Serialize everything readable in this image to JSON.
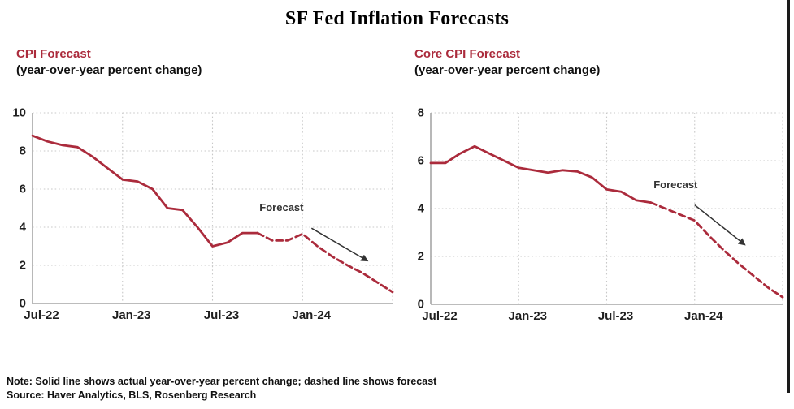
{
  "page_title": "SF Fed Inflation Forecasts",
  "note_line": "Note: Solid line shows actual year-over-year percent change; dashed line shows forecast",
  "source_line": "Source: Haver Analytics, BLS, Rosenberg Research",
  "colors": {
    "line_red": "#ab2b3c",
    "header_red": "#ab2b3c",
    "axis_gray": "#a6a6a6",
    "grid_gray": "#c8c8c8",
    "tick_text": "#1f1f1f",
    "annotation": "#333333"
  },
  "chart_data": [
    {
      "type": "line",
      "title": "CPI Forecast",
      "subtitle": "(year-over-year percent change)",
      "xlabel": "",
      "ylabel": "",
      "ylim": [
        0,
        10
      ],
      "yticks": [
        0,
        2,
        4,
        6,
        8,
        10
      ],
      "grid": true,
      "x": [
        "Jul-22",
        "Aug-22",
        "Sep-22",
        "Oct-22",
        "Nov-22",
        "Dec-22",
        "Jan-23",
        "Feb-23",
        "Mar-23",
        "Apr-23",
        "May-23",
        "Jun-23",
        "Jul-23",
        "Aug-23",
        "Sep-23",
        "Oct-23",
        "Nov-23",
        "Dec-23",
        "Jan-24",
        "Feb-24",
        "Mar-24",
        "Apr-24",
        "May-24",
        "Jun-24",
        "Jul-24"
      ],
      "xtick_labels": [
        "Jul-22",
        "Jan-23",
        "Jul-23",
        "Jan-24"
      ],
      "xtick_indices": [
        0,
        6,
        12,
        18
      ],
      "series": [
        {
          "name": "actual",
          "style": "solid",
          "start_index": 0,
          "values": [
            8.8,
            8.5,
            8.3,
            8.2,
            7.7,
            7.1,
            6.5,
            6.4,
            6.0,
            5.0,
            4.9,
            4.0,
            3.0,
            3.2,
            3.7,
            3.7
          ]
        },
        {
          "name": "forecast",
          "style": "dashed",
          "start_index": 15,
          "values": [
            3.7,
            3.3,
            3.3,
            3.65,
            3.0,
            2.45,
            2.0,
            1.6,
            1.1,
            0.6
          ]
        }
      ],
      "annotation": {
        "label": "Forecast",
        "text_at": [
          16.6,
          4.85
        ],
        "arrow_from": [
          18.6,
          3.95
        ],
        "arrow_to": [
          22.3,
          2.25
        ]
      }
    },
    {
      "type": "line",
      "title": "Core CPI Forecast",
      "subtitle": "(year-over-year percent change)",
      "xlabel": "",
      "ylabel": "",
      "ylim": [
        0,
        8
      ],
      "yticks": [
        0,
        2,
        4,
        6,
        8
      ],
      "grid": true,
      "x": [
        "Jul-22",
        "Aug-22",
        "Sep-22",
        "Oct-22",
        "Nov-22",
        "Dec-22",
        "Jan-23",
        "Feb-23",
        "Mar-23",
        "Apr-23",
        "May-23",
        "Jun-23",
        "Jul-23",
        "Aug-23",
        "Sep-23",
        "Oct-23",
        "Nov-23",
        "Dec-23",
        "Jan-24",
        "Feb-24",
        "Mar-24",
        "Apr-24",
        "May-24",
        "Jun-24",
        "Jul-24"
      ],
      "xtick_labels": [
        "Jul-22",
        "Jan-23",
        "Jul-23",
        "Jan-24"
      ],
      "xtick_indices": [
        0,
        6,
        12,
        18
      ],
      "series": [
        {
          "name": "actual",
          "style": "solid",
          "start_index": 0,
          "values": [
            5.9,
            5.9,
            6.3,
            6.6,
            6.3,
            6.0,
            5.7,
            5.6,
            5.5,
            5.6,
            5.55,
            5.3,
            4.8,
            4.7,
            4.35,
            4.25
          ]
        },
        {
          "name": "forecast",
          "style": "dashed",
          "start_index": 15,
          "values": [
            4.25,
            4.0,
            3.75,
            3.5,
            2.85,
            2.25,
            1.7,
            1.2,
            0.7,
            0.3
          ]
        }
      ],
      "annotation": {
        "label": "Forecast",
        "text_at": [
          16.7,
          4.85
        ],
        "arrow_from": [
          18.0,
          4.15
        ],
        "arrow_to": [
          21.4,
          2.5
        ]
      }
    }
  ]
}
